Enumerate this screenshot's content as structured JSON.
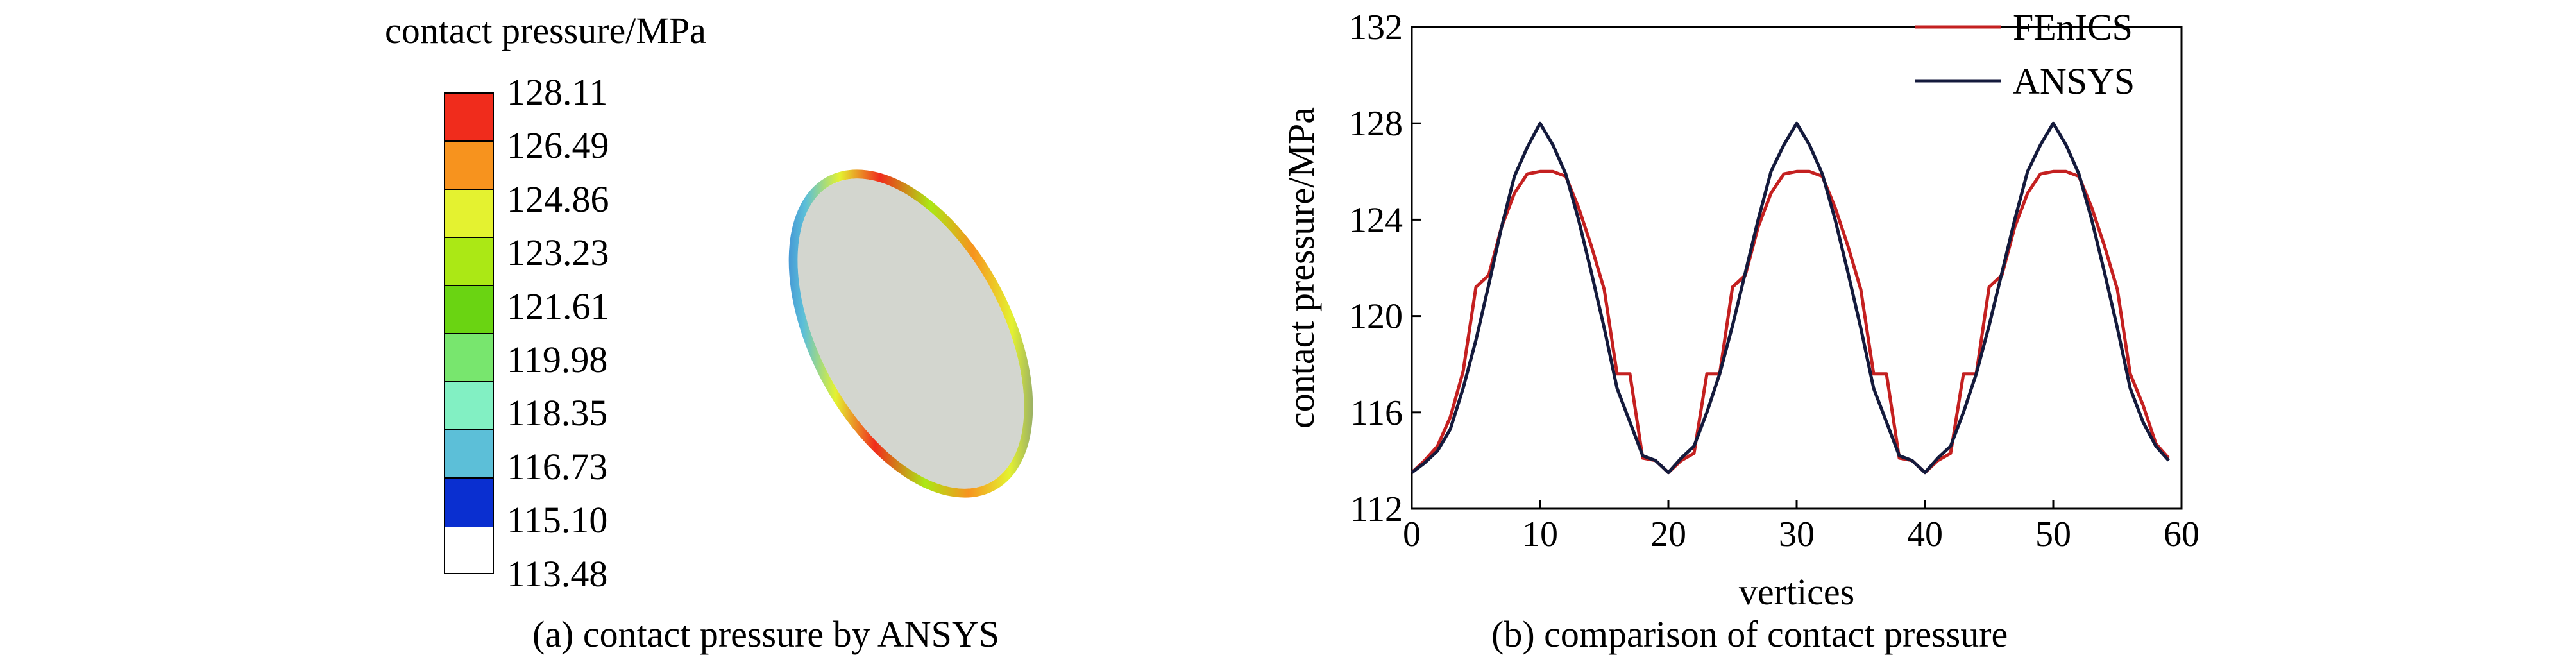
{
  "panel_a": {
    "legend_title": "contact pressure/MPa",
    "levels": [
      "128.11",
      "126.49",
      "124.86",
      "123.23",
      "121.61",
      "119.98",
      "118.35",
      "116.73",
      "115.10",
      "113.48"
    ],
    "level_colors": [
      "#f02c1c",
      "#f7931e",
      "#e4f230",
      "#abe815",
      "#6ad412",
      "#78e66e",
      "#82f0c3",
      "#5cbfd8",
      "#0a2fd0"
    ],
    "caption": "(a) contact pressure by ANSYS"
  },
  "chart_data": {
    "type": "line",
    "title": "",
    "xlabel": "vertices",
    "ylabel": "contact pressure/MPa",
    "xlim": [
      0,
      60
    ],
    "ylim": [
      112,
      132
    ],
    "xticks": [
      0,
      10,
      20,
      30,
      40,
      50,
      60
    ],
    "yticks": [
      112,
      116,
      120,
      124,
      128,
      132
    ],
    "grid": false,
    "legend": "top-right",
    "x": [
      0,
      1,
      2,
      3,
      4,
      5,
      6,
      7,
      8,
      9,
      10,
      11,
      12,
      13,
      14,
      15,
      16,
      17,
      18,
      19,
      20,
      21,
      22,
      23,
      24,
      25,
      26,
      27,
      28,
      29,
      30,
      31,
      32,
      33,
      34,
      35,
      36,
      37,
      38,
      39,
      40,
      41,
      42,
      43,
      44,
      45,
      46,
      47,
      48,
      49,
      50,
      51,
      52,
      53,
      54,
      55,
      56,
      57,
      58,
      59
    ],
    "series": [
      {
        "name": "FEnICS",
        "color": "#c42020",
        "values": [
          113.5,
          114.0,
          114.6,
          115.8,
          117.7,
          121.2,
          121.7,
          123.7,
          125.1,
          125.9,
          126.0,
          126.0,
          125.8,
          124.5,
          122.9,
          121.1,
          117.6,
          117.6,
          114.1,
          114.0,
          113.5,
          114.0,
          114.3,
          117.6,
          117.6,
          121.2,
          121.7,
          123.7,
          125.1,
          125.9,
          126.0,
          126.0,
          125.8,
          124.5,
          122.9,
          121.1,
          117.6,
          117.6,
          114.1,
          114.0,
          113.5,
          114.0,
          114.3,
          117.6,
          117.6,
          121.2,
          121.7,
          123.7,
          125.1,
          125.9,
          126.0,
          126.0,
          125.8,
          124.5,
          122.9,
          121.1,
          117.6,
          116.3,
          114.7,
          114.1
        ]
      },
      {
        "name": "ANSYS",
        "color": "#141a3c",
        "values": [
          113.5,
          113.9,
          114.4,
          115.3,
          117.0,
          119.0,
          121.3,
          123.7,
          125.8,
          127.0,
          128.0,
          127.1,
          125.9,
          124.0,
          121.8,
          119.5,
          117.0,
          115.6,
          114.2,
          114.0,
          113.5,
          114.1,
          114.6,
          116.0,
          117.6,
          119.6,
          121.8,
          124.0,
          126.0,
          127.1,
          128.0,
          127.1,
          125.9,
          124.0,
          121.8,
          119.5,
          117.0,
          115.6,
          114.2,
          114.0,
          113.5,
          114.1,
          114.6,
          116.0,
          117.6,
          119.6,
          121.8,
          124.0,
          126.0,
          127.1,
          128.0,
          127.1,
          125.9,
          124.0,
          121.8,
          119.5,
          117.0,
          115.6,
          114.6,
          114.0
        ]
      }
    ],
    "caption": "(b) comparison of contact pressure"
  }
}
